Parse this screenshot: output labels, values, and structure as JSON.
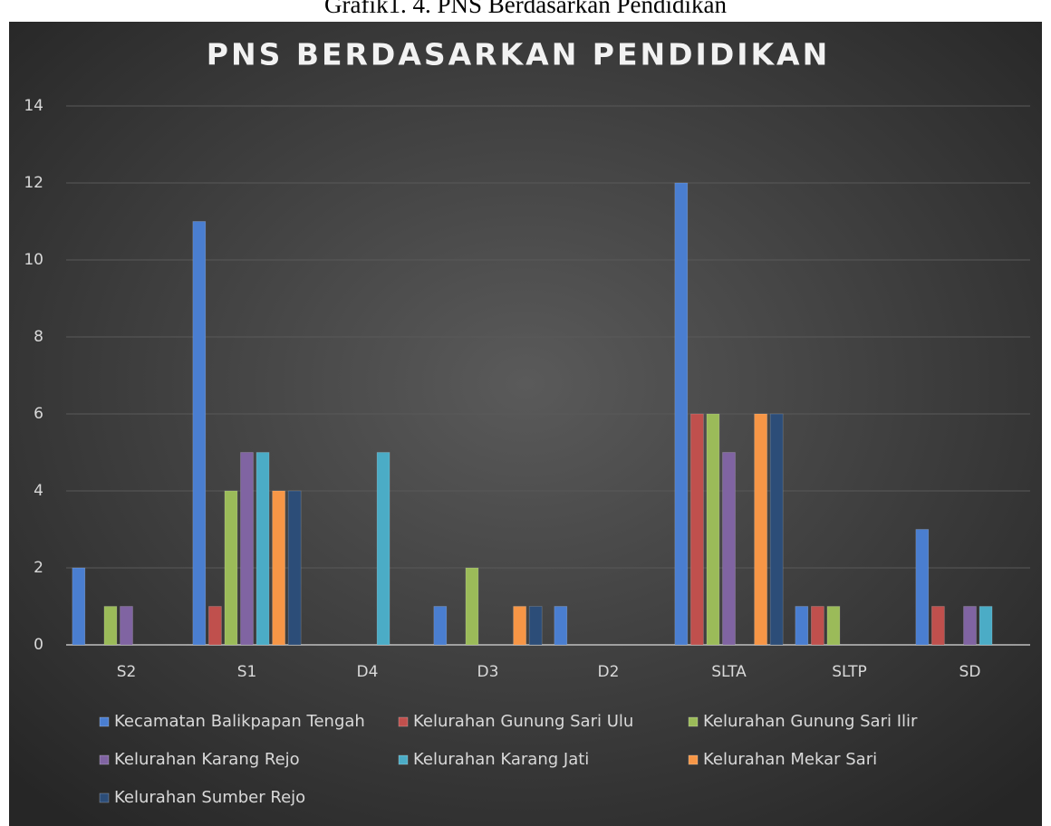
{
  "chart_data": {
    "type": "bar",
    "caption": "Grafik1. 4. PNS Berdasarkan Pendidikan",
    "title": "PNS BERDASARKAN PENDIDIKAN",
    "categories": [
      "S2",
      "S1",
      "D4",
      "D3",
      "D2",
      "SLTA",
      "SLTP",
      "SD"
    ],
    "series": [
      {
        "name": "Kecamatan Balikpapan Tengah",
        "color": "#4a7ed0",
        "values": [
          2,
          11,
          0,
          1,
          1,
          12,
          1,
          3
        ]
      },
      {
        "name": "Kelurahan Gunung Sari Ulu",
        "color": "#c0504d",
        "values": [
          0,
          1,
          0,
          0,
          0,
          6,
          1,
          1
        ]
      },
      {
        "name": "Kelurahan Gunung Sari Ilir",
        "color": "#9bbb59",
        "values": [
          1,
          4,
          0,
          2,
          0,
          6,
          1,
          0
        ]
      },
      {
        "name": "Kelurahan Karang Rejo",
        "color": "#8064a2",
        "values": [
          1,
          5,
          0,
          0,
          0,
          5,
          0,
          1
        ]
      },
      {
        "name": "Kelurahan Karang Jati",
        "color": "#4bacc6",
        "values": [
          0,
          5,
          5,
          0,
          0,
          0,
          0,
          1
        ]
      },
      {
        "name": "Kelurahan Mekar Sari",
        "color": "#f79646",
        "values": [
          0,
          4,
          0,
          1,
          0,
          6,
          0,
          0
        ]
      },
      {
        "name": "Kelurahan Sumber Rejo",
        "color": "#2c4d78",
        "values": [
          0,
          4,
          0,
          1,
          0,
          6,
          0,
          0
        ]
      }
    ],
    "ylim": [
      0,
      14
    ],
    "yticks": [
      0,
      2,
      4,
      6,
      8,
      10,
      12,
      14
    ],
    "grid": true,
    "legend": "bottom"
  }
}
